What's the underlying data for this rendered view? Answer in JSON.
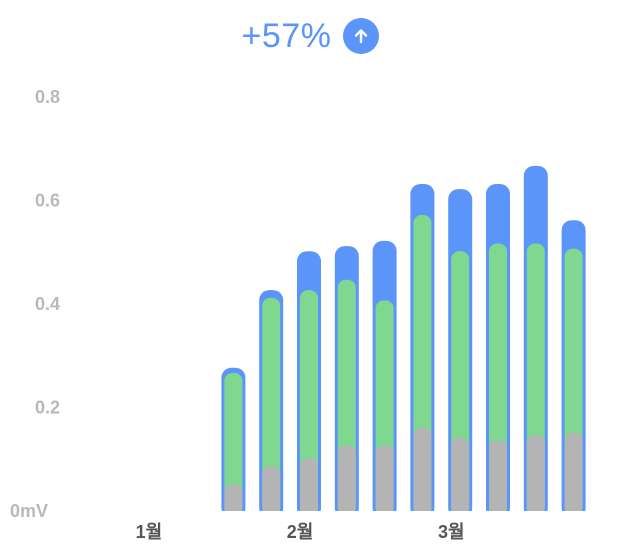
{
  "header": {
    "change_text": "+57%",
    "change_icon": "arrow-up-icon",
    "accent": "#5b95f9"
  },
  "colors": {
    "top": "#5b95f9",
    "middle": "#7fd88f",
    "bottom": "#b4b4b4"
  },
  "chart_data": {
    "type": "bar",
    "stacked": true,
    "title": "",
    "xlabel": "",
    "ylabel": "",
    "y_tick_labels": [
      "0mV",
      "0.2",
      "0.4",
      "0.6",
      "0.8"
    ],
    "x_tick_labels": [
      {
        "label": "1월",
        "after_bar": 0
      },
      {
        "label": "2월",
        "after_bar": 4
      },
      {
        "label": "3월",
        "after_bar": 8
      }
    ],
    "ylim": [
      0,
      0.8
    ],
    "grid": false,
    "legend": "none",
    "bar_count": 13,
    "series": [
      {
        "values": [
          0,
          0,
          0,
          0.05,
          0.085,
          0.1,
          0.125,
          0.125,
          0.16,
          0.14,
          0.135,
          0.145,
          0.15
        ]
      },
      {
        "values": [
          0,
          0,
          0,
          0.215,
          0.325,
          0.325,
          0.32,
          0.28,
          0.41,
          0.36,
          0.38,
          0.37,
          0.355
        ]
      },
      {
        "values": [
          0,
          0,
          0,
          0.01,
          0.015,
          0.075,
          0.065,
          0.115,
          0.06,
          0.12,
          0.115,
          0.15,
          0.055
        ]
      }
    ]
  }
}
